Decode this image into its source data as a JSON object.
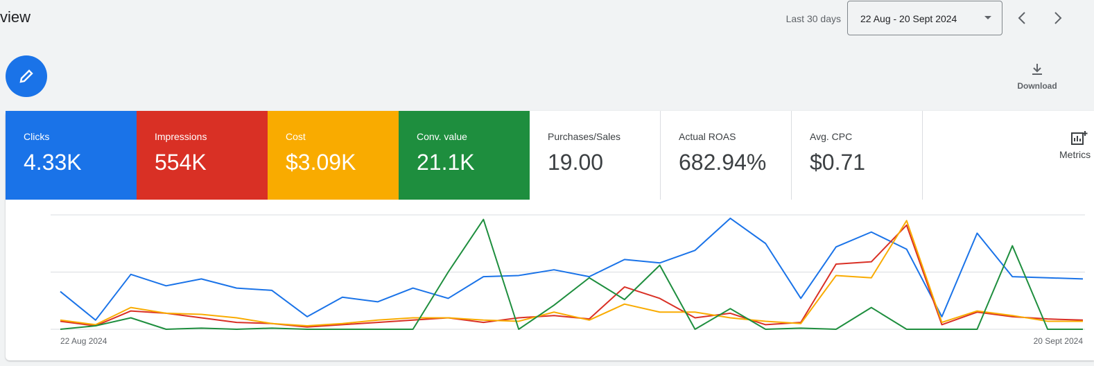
{
  "header": {
    "title": "view",
    "range_label": "Last 30 days",
    "date_range": "22 Aug - 20 Sept 2024",
    "download": "Download",
    "metrics": "Metrics"
  },
  "scorecards": [
    {
      "label": "Clicks",
      "value": "4.33K"
    },
    {
      "label": "Impressions",
      "value": "554K"
    },
    {
      "label": "Cost",
      "value": "$3.09K"
    },
    {
      "label": "Conv. value",
      "value": "21.1K"
    },
    {
      "label": "Purchases/Sales",
      "value": "19.00"
    },
    {
      "label": "Actual ROAS",
      "value": "682.94%"
    },
    {
      "label": "Avg. CPC",
      "value": "$0.71"
    }
  ],
  "chart_data": {
    "type": "line",
    "categories": [
      "22 Aug 2024",
      null,
      null,
      null,
      null,
      null,
      null,
      null,
      null,
      null,
      null,
      null,
      null,
      null,
      null,
      null,
      null,
      null,
      null,
      null,
      null,
      null,
      null,
      null,
      null,
      null,
      null,
      null,
      null,
      "20 Sept 2024"
    ],
    "series": [
      {
        "color": "#1a73e8",
        "values": [
          33,
          8,
          48,
          38,
          44,
          36,
          34,
          11,
          28,
          24,
          36,
          27,
          46,
          47,
          52,
          46,
          61,
          58,
          69,
          97,
          75,
          27,
          72,
          85,
          70,
          11,
          84,
          46,
          45,
          44
        ]
      },
      {
        "color": "#d93025",
        "values": [
          7,
          3,
          16,
          14,
          10,
          6,
          5,
          2,
          4,
          6,
          8,
          10,
          6,
          10,
          12,
          9,
          37,
          27,
          10,
          14,
          4,
          6,
          57,
          59,
          91,
          4,
          15,
          11,
          9,
          8
        ]
      },
      {
        "color": "#f9ab00",
        "values": [
          8,
          4,
          19,
          14,
          13,
          10,
          5,
          3,
          5,
          8,
          10,
          10,
          8,
          7,
          15,
          8,
          22,
          15,
          15,
          10,
          7,
          5,
          47,
          45,
          95,
          6,
          16,
          12,
          7,
          7
        ]
      },
      {
        "color": "#1e8e3e",
        "values": [
          0,
          3,
          10,
          0,
          1,
          0,
          1,
          0,
          0,
          0,
          0,
          50,
          96,
          0,
          21,
          45,
          26,
          56,
          0,
          18,
          0,
          1,
          0,
          19,
          0,
          0,
          0,
          73,
          0,
          0
        ]
      }
    ],
    "ylim": [
      0,
      100
    ],
    "yticks": [
      0,
      50,
      100
    ],
    "grid": true
  }
}
